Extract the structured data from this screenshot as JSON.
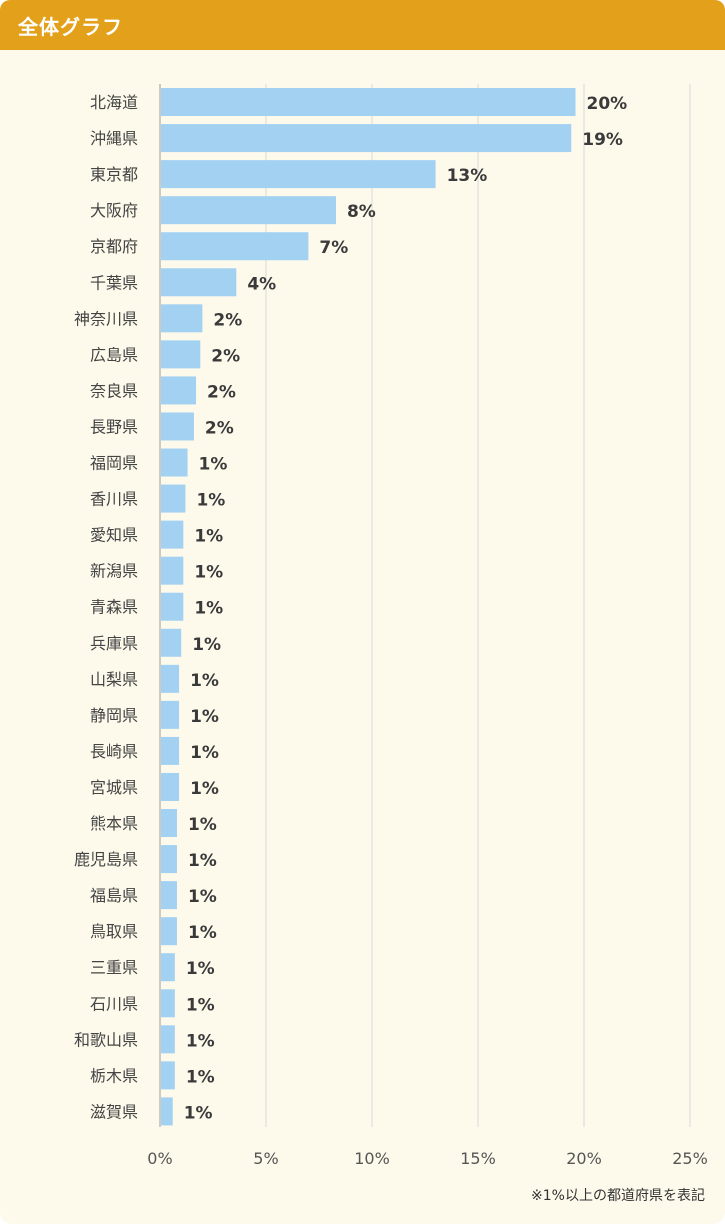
{
  "header": {
    "title": "全体グラフ"
  },
  "note": "※1%以上の都道府県を表記",
  "colors": {
    "header_bg": "#e3a01b",
    "panel_bg": "#fdfaec",
    "bar": "#a3d1f2",
    "grid": "#d9d9d9",
    "label": "#444444",
    "value": "#3a3a3a"
  },
  "chart_data": {
    "type": "bar",
    "orientation": "horizontal",
    "title": "全体グラフ",
    "categories": [
      "北海道",
      "沖縄県",
      "東京都",
      "大阪府",
      "京都府",
      "千葉県",
      "神奈川県",
      "広島県",
      "奈良県",
      "長野県",
      "福岡県",
      "香川県",
      "愛知県",
      "新潟県",
      "青森県",
      "兵庫県",
      "山梨県",
      "静岡県",
      "長崎県",
      "宮城県",
      "熊本県",
      "鹿児島県",
      "福島県",
      "鳥取県",
      "三重県",
      "石川県",
      "和歌山県",
      "栃木県",
      "滋賀県"
    ],
    "values": [
      19.6,
      19.4,
      13.0,
      8.3,
      7.0,
      3.6,
      2.0,
      1.9,
      1.7,
      1.6,
      1.3,
      1.2,
      1.1,
      1.1,
      1.1,
      1.0,
      0.9,
      0.9,
      0.9,
      0.9,
      0.8,
      0.8,
      0.8,
      0.8,
      0.7,
      0.7,
      0.7,
      0.7,
      0.6
    ],
    "value_labels": [
      "20%",
      "19%",
      "13%",
      "8%",
      "7%",
      "4%",
      "2%",
      "2%",
      "2%",
      "2%",
      "1%",
      "1%",
      "1%",
      "1%",
      "1%",
      "1%",
      "1%",
      "1%",
      "1%",
      "1%",
      "1%",
      "1%",
      "1%",
      "1%",
      "1%",
      "1%",
      "1%",
      "1%",
      "1%"
    ],
    "xlim": [
      0,
      25
    ],
    "xticks": [
      "0%",
      "5%",
      "10%",
      "15%",
      "20%",
      "25%"
    ],
    "grid": true
  }
}
